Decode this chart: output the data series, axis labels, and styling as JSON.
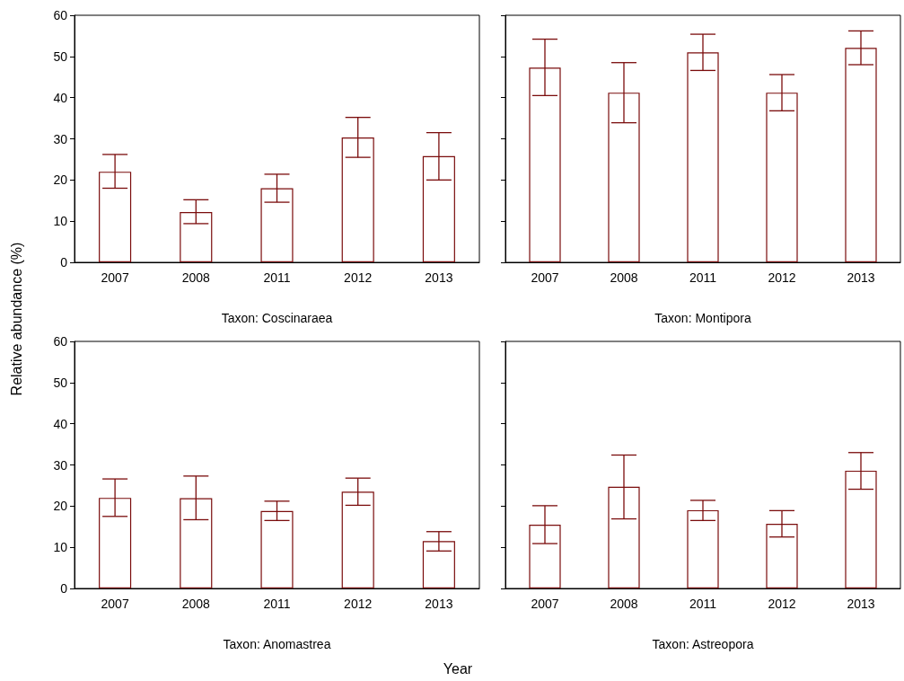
{
  "chart_data": [
    {
      "type": "bar",
      "xlabel": "Taxon: Coscinaraea",
      "ylabel": "Relative abundance (%)",
      "categories": [
        "2007",
        "2008",
        "2011",
        "2012",
        "2013"
      ],
      "ylim": [
        0,
        60
      ],
      "yticks": [
        0,
        10,
        20,
        30,
        40,
        50,
        60
      ],
      "series": [
        {
          "color": "#7a0c0c",
          "values": [
            22,
            12.2,
            18,
            30.3,
            25.8
          ],
          "errors": [
            [
              18,
              26.2
            ],
            [
              9.4,
              15.2
            ],
            [
              14.6,
              21.4
            ],
            [
              25.5,
              35.2
            ],
            [
              20,
              31.5
            ]
          ]
        }
      ]
    },
    {
      "type": "bar",
      "xlabel": "Taxon: Montipora",
      "categories": [
        "2007",
        "2008",
        "2011",
        "2012",
        "2013"
      ],
      "ylim": [
        0,
        60
      ],
      "yticks": [
        0,
        10,
        20,
        30,
        40,
        50,
        60
      ],
      "tick_labels": "x",
      "series": [
        {
          "color": "#7a0c0c",
          "values": [
            47.3,
            41.2,
            51,
            41.2,
            52.1
          ],
          "errors": [
            [
              40.5,
              54.2
            ],
            [
              33.9,
              48.5
            ],
            [
              46.6,
              55.4
            ],
            [
              36.8,
              45.6
            ],
            [
              48,
              56.2
            ]
          ]
        }
      ]
    },
    {
      "type": "bar",
      "xlabel": "Taxon: Anomastrea",
      "categories": [
        "2007",
        "2008",
        "2011",
        "2012",
        "2013"
      ],
      "ylim": [
        0,
        60
      ],
      "yticks": [
        0,
        10,
        20,
        30,
        40,
        50,
        60
      ],
      "annotations": [
        "Year"
      ],
      "series": [
        {
          "color": "#7a0c0c",
          "values": [
            22,
            21.9,
            18.8,
            23.5,
            11.5
          ],
          "errors": [
            [
              17.5,
              26.6
            ],
            [
              16.7,
              27.3
            ],
            [
              16.5,
              21.2
            ],
            [
              20.2,
              26.8
            ],
            [
              9.1,
              13.8
            ]
          ]
        }
      ]
    },
    {
      "type": "bar",
      "xlabel": "Taxon: Astreopora",
      "categories": [
        "2007",
        "2008",
        "2011",
        "2012",
        "2013"
      ],
      "ylim": [
        0,
        60
      ],
      "yticks": [
        0,
        10,
        20,
        30,
        40,
        50,
        60
      ],
      "tick_labels": "x",
      "series": [
        {
          "color": "#7a0c0c",
          "values": [
            15.5,
            24.7,
            19,
            15.7,
            28.6
          ],
          "errors": [
            [
              10.9,
              20.1
            ],
            [
              16.9,
              32.4
            ],
            [
              16.5,
              21.4
            ],
            [
              12.5,
              18.9
            ],
            [
              24.1,
              33
            ]
          ]
        }
      ]
    }
  ]
}
